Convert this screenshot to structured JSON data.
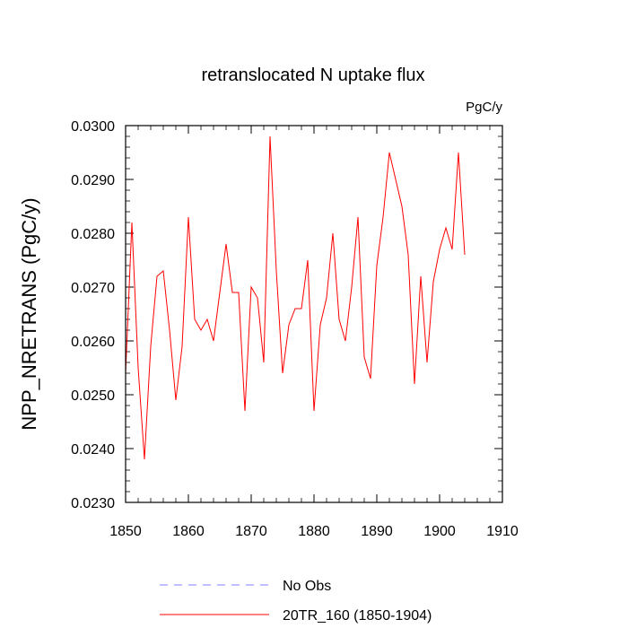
{
  "chart_data": {
    "type": "line",
    "title": "retranslocated N uptake flux",
    "units_label": "PgC/y",
    "ylabel": "NPP_NRETRANS  (PgC/y)",
    "xlabel": "",
    "xlim": [
      1850,
      1910
    ],
    "ylim": [
      0.023,
      0.03
    ],
    "xticks": [
      1850,
      1860,
      1870,
      1880,
      1890,
      1900,
      1910
    ],
    "xtick_labels": [
      "1850",
      "1860",
      "1870",
      "1880",
      "1890",
      "1900",
      "1910"
    ],
    "yticks": [
      0.023,
      0.024,
      0.025,
      0.026,
      0.027,
      0.028,
      0.029,
      0.03
    ],
    "ytick_labels": [
      "0.0230",
      "0.0240",
      "0.0250",
      "0.0260",
      "0.0270",
      "0.0280",
      "0.0290",
      "0.0300"
    ],
    "grid": false,
    "legend_position": "bottom",
    "series": [
      {
        "name": "No Obs",
        "color": "#8080ff",
        "style": "dashed",
        "x": [],
        "values": []
      },
      {
        "name": "20TR_160 (1850-1904)",
        "color": "#ff0000",
        "style": "solid",
        "x": [
          1850,
          1851,
          1852,
          1853,
          1854,
          1855,
          1856,
          1857,
          1858,
          1859,
          1860,
          1861,
          1862,
          1863,
          1864,
          1865,
          1866,
          1867,
          1868,
          1869,
          1870,
          1871,
          1872,
          1873,
          1874,
          1875,
          1876,
          1877,
          1878,
          1879,
          1880,
          1881,
          1882,
          1883,
          1884,
          1885,
          1886,
          1887,
          1888,
          1889,
          1890,
          1891,
          1892,
          1893,
          1894,
          1895,
          1896,
          1897,
          1898,
          1899,
          1900,
          1901,
          1902,
          1903,
          1904
        ],
        "values": [
          0.0254,
          0.0282,
          0.0255,
          0.0238,
          0.0259,
          0.0272,
          0.0273,
          0.0262,
          0.0249,
          0.0259,
          0.0283,
          0.0264,
          0.0262,
          0.0264,
          0.026,
          0.0269,
          0.0278,
          0.0269,
          0.0269,
          0.0247,
          0.027,
          0.0268,
          0.0256,
          0.0298,
          0.0273,
          0.0254,
          0.0263,
          0.0266,
          0.0266,
          0.0275,
          0.0247,
          0.0263,
          0.0268,
          0.028,
          0.0264,
          0.026,
          0.027,
          0.0283,
          0.0257,
          0.0253,
          0.0274,
          0.0283,
          0.0295,
          0.029,
          0.0285,
          0.0276,
          0.0252,
          0.0272,
          0.0256,
          0.0271,
          0.0277,
          0.0281,
          0.0277,
          0.0295,
          0.0276
        ]
      }
    ]
  }
}
